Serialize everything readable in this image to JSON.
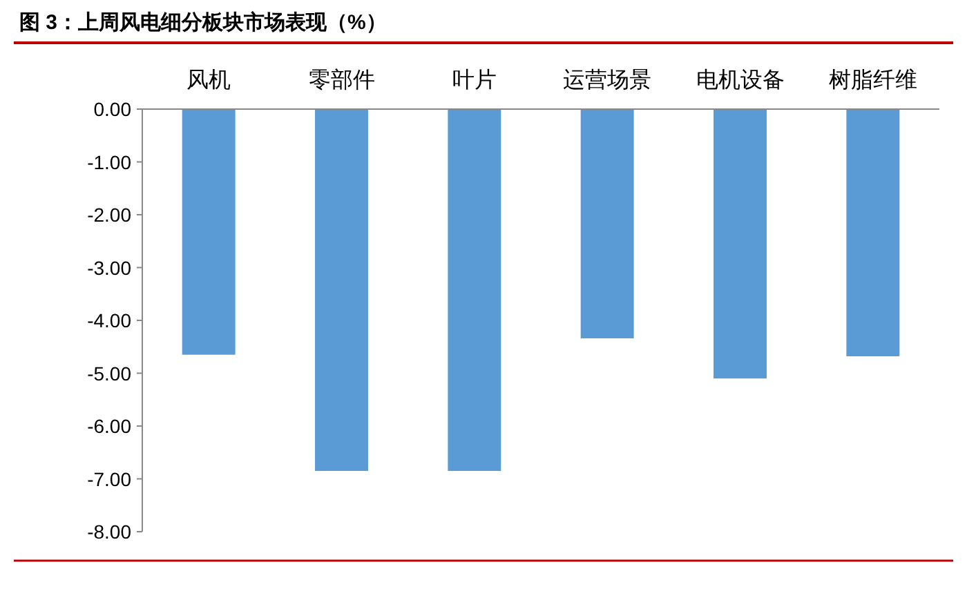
{
  "chart_data": {
    "type": "bar",
    "title": "图 3：上周风电细分板块市场表现（%）",
    "categories": [
      "风机",
      "零部件",
      "叶片",
      "运营场景",
      "电机设备",
      "树脂纤维"
    ],
    "values": [
      -4.65,
      -6.85,
      -6.85,
      -4.34,
      -5.1,
      -4.68
    ],
    "color": "#5b9bd5",
    "ylim": [
      -8,
      0
    ],
    "yticks": [
      {
        "value": 0,
        "label": "0.00"
      },
      {
        "value": -1,
        "label": "-1.00"
      },
      {
        "value": -2,
        "label": "-2.00"
      },
      {
        "value": -3,
        "label": "-3.00"
      },
      {
        "value": -4,
        "label": "-4.00"
      },
      {
        "value": -5,
        "label": "-5.00"
      },
      {
        "value": -6,
        "label": "-6.00"
      },
      {
        "value": -7,
        "label": "-7.00"
      },
      {
        "value": -8,
        "label": "-8.00"
      }
    ],
    "grid": false
  }
}
